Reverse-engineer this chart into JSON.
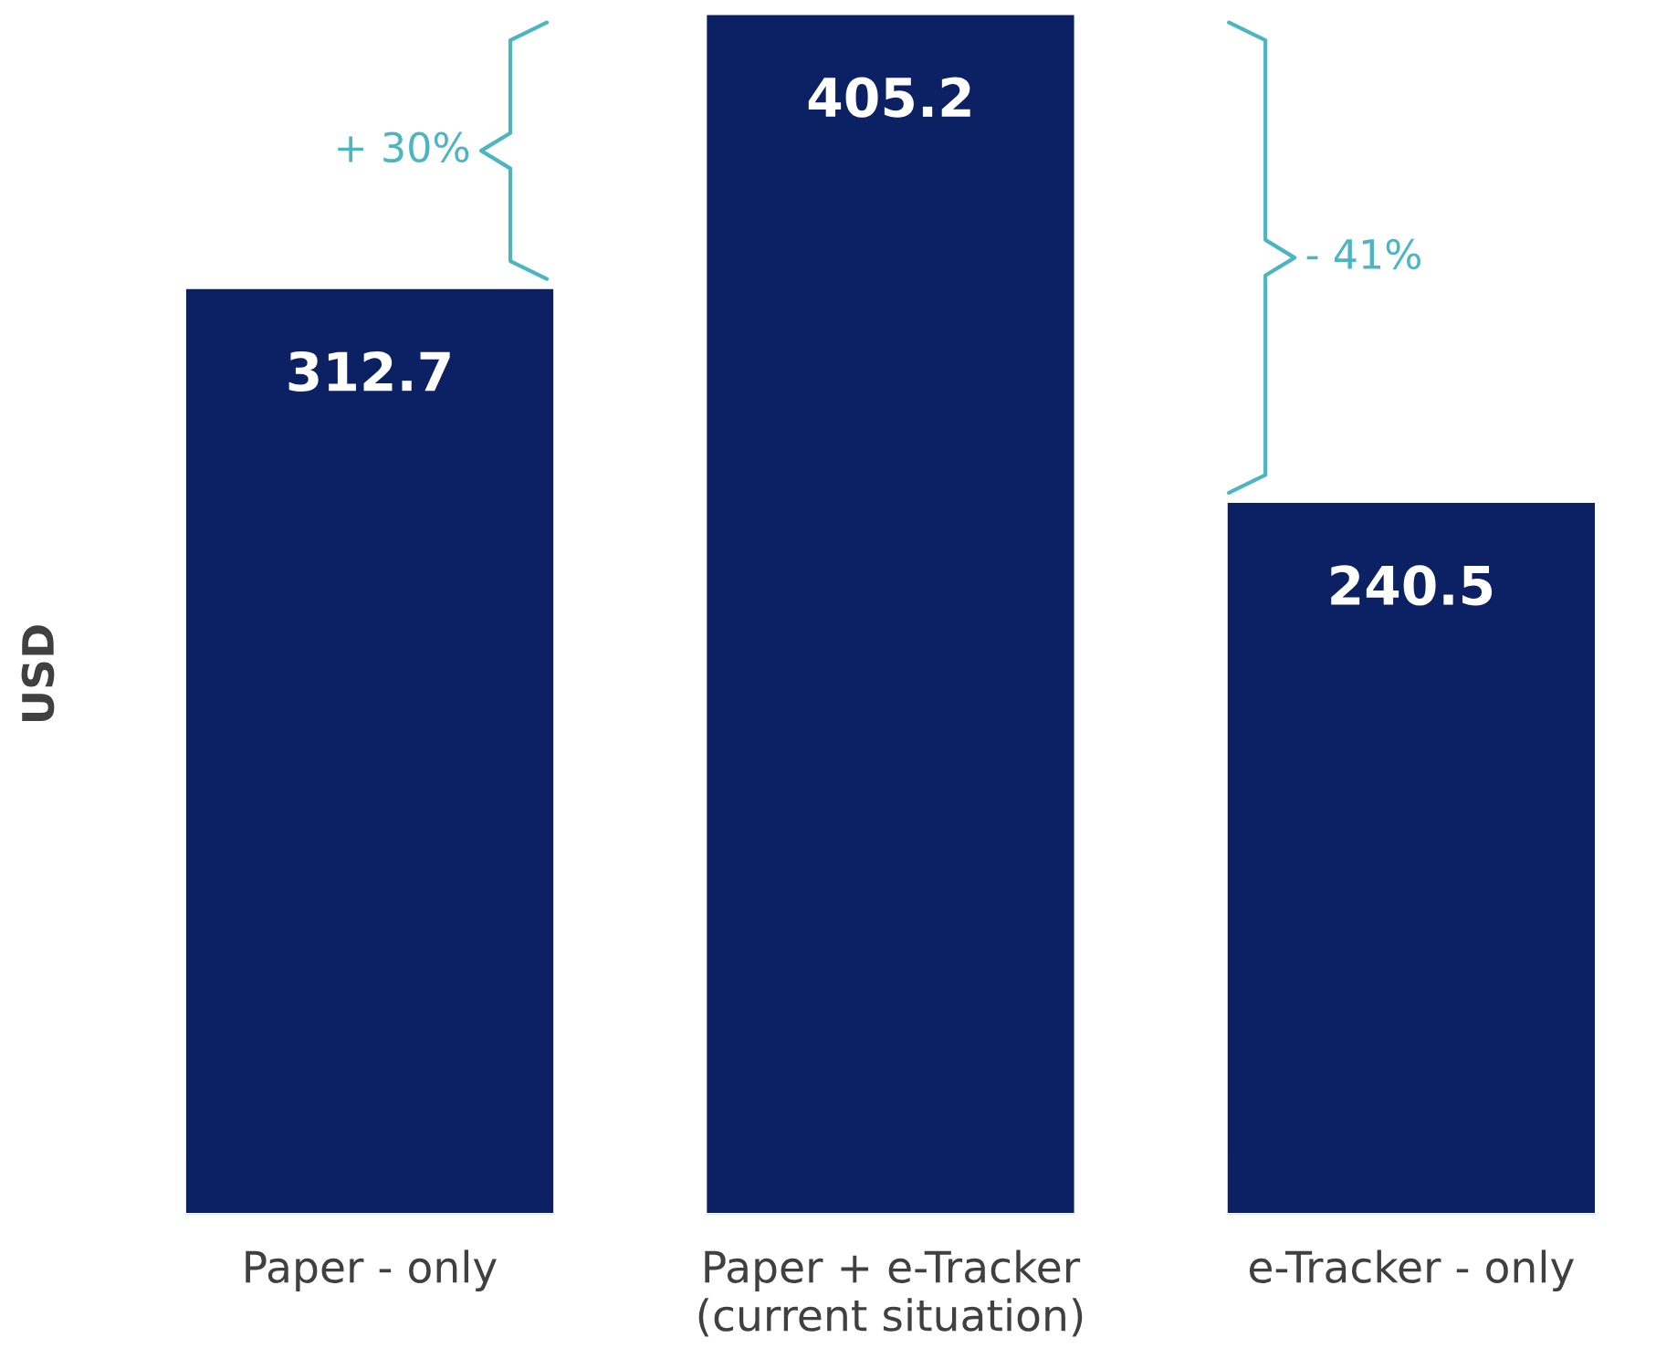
{
  "chart_data": {
    "type": "bar",
    "ylabel": "USD",
    "categories": [
      "Paper - only",
      "Paper + e-Tracker\n(current situation)",
      "e-Tracker - only"
    ],
    "values": [
      312.7,
      405.2,
      240.5
    ],
    "color": "#0c2163",
    "data_labels": true,
    "grid": false,
    "legend": false,
    "annotations": [
      "+ 30%",
      "- 41%"
    ]
  }
}
